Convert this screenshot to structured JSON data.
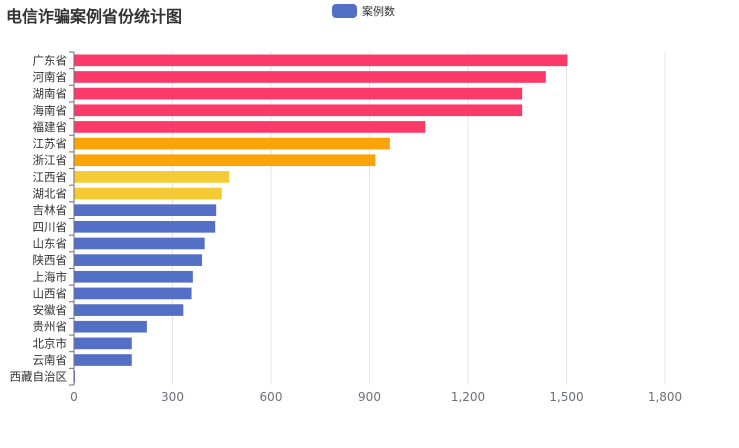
{
  "title": "电信诈骗案例省份统计图",
  "legend": {
    "label": "案例数"
  },
  "colors": {
    "high": "#fc3a6a",
    "mid_high": "#fba40a",
    "mid": "#f5cb35",
    "low": "#5470c6",
    "axis": "#6e7079",
    "grid": "#e0e6f1"
  },
  "chart_data": {
    "type": "bar",
    "orientation": "horizontal",
    "title": "电信诈骗案例省份统计图",
    "xlabel": "",
    "ylabel": "",
    "xlim": [
      0,
      1800
    ],
    "xticks": [
      0,
      300,
      600,
      900,
      1200,
      1500,
      1800
    ],
    "xtick_labels": [
      "0",
      "300",
      "600",
      "900",
      "1,200",
      "1,500",
      "1,800"
    ],
    "categories": [
      "广东省",
      "河南省",
      "湖南省",
      "海南省",
      "福建省",
      "江苏省",
      "浙江省",
      "江西省",
      "湖北省",
      "吉林省",
      "四川省",
      "山东省",
      "陕西省",
      "上海市",
      "山西省",
      "安徽省",
      "贵州省",
      "北京市",
      "云南省",
      "西藏自治区"
    ],
    "values": [
      1503,
      1437,
      1365,
      1365,
      1070,
      962,
      918,
      473,
      450,
      433,
      430,
      398,
      390,
      362,
      358,
      333,
      222,
      176,
      176,
      3
    ],
    "bar_colors": [
      "high",
      "high",
      "high",
      "high",
      "high",
      "mid_high",
      "mid_high",
      "mid",
      "mid",
      "low",
      "low",
      "low",
      "low",
      "low",
      "low",
      "low",
      "low",
      "low",
      "low",
      "low"
    ],
    "series": [
      {
        "name": "案例数"
      }
    ]
  }
}
